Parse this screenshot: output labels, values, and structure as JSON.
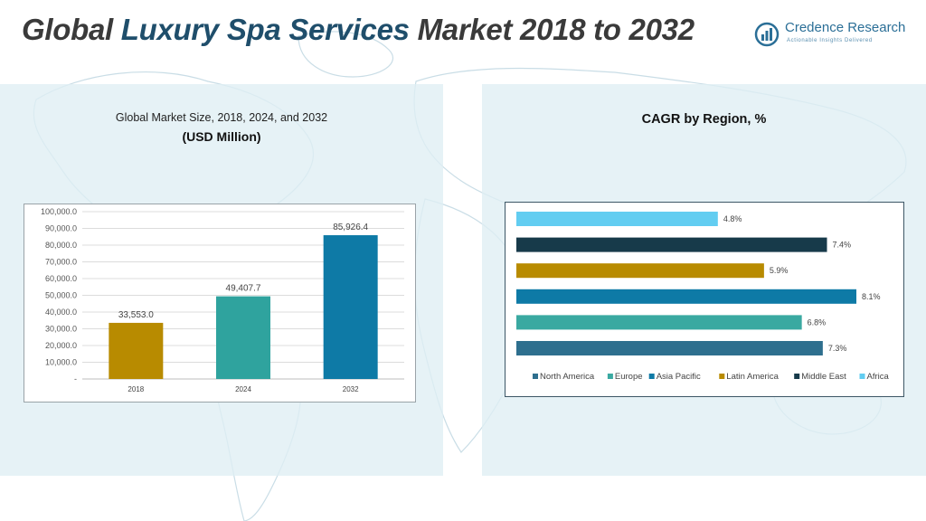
{
  "header": {
    "title_part1": "Global ",
    "title_part2": "Luxury Spa Services",
    "title_part3": " Market 2018 to 2032",
    "logo_name": "Credence Research",
    "logo_tagline": "Actionable Insights Delivered",
    "logo_icon": "bar-chart-logo-icon"
  },
  "colors": {
    "title_text": "#3a3a3a",
    "title_accent": "#1f4e6b",
    "panel_bg": "#dfeef3",
    "map": "#c9dde6"
  },
  "chart_data": [
    {
      "type": "bar",
      "title": "Global Market Size, 2018, 2024, and 2032",
      "subtitle": "(USD Million)",
      "categories": [
        "2018",
        "2024",
        "2032"
      ],
      "values": [
        33553.0,
        49407.7,
        85926.4
      ],
      "value_labels": [
        "33,553.0",
        "49,407.7",
        "85,926.4"
      ],
      "colors": [
        "#b88b00",
        "#2fa39e",
        "#0e7aa6"
      ],
      "ylim": [
        0,
        100000
      ],
      "yticks": [
        "-",
        "10,000.0",
        "20,000.0",
        "30,000.0",
        "40,000.0",
        "50,000.0",
        "60,000.0",
        "70,000.0",
        "80,000.0",
        "90,000.0",
        "100,000.0"
      ],
      "grid": true,
      "xlabel": "",
      "ylabel": ""
    },
    {
      "type": "bar",
      "orientation": "horizontal",
      "title": "CAGR by Region, %",
      "series": [
        {
          "name": "North America",
          "value": 7.3,
          "label": "7.3%",
          "color": "#2e6f8e"
        },
        {
          "name": "Europe",
          "value": 6.8,
          "label": "6.8%",
          "color": "#3aa9a1"
        },
        {
          "name": "Asia Pacific",
          "value": 8.1,
          "label": "8.1%",
          "color": "#0e7aa6"
        },
        {
          "name": "Latin America",
          "value": 5.9,
          "label": "5.9%",
          "color": "#b88b00"
        },
        {
          "name": "Middle East",
          "value": 7.4,
          "label": "7.4%",
          "color": "#173a4a"
        },
        {
          "name": "Africa",
          "value": 4.8,
          "label": "4.8%",
          "color": "#62cdf1"
        }
      ],
      "legend_position": "bottom",
      "grid": false
    }
  ]
}
